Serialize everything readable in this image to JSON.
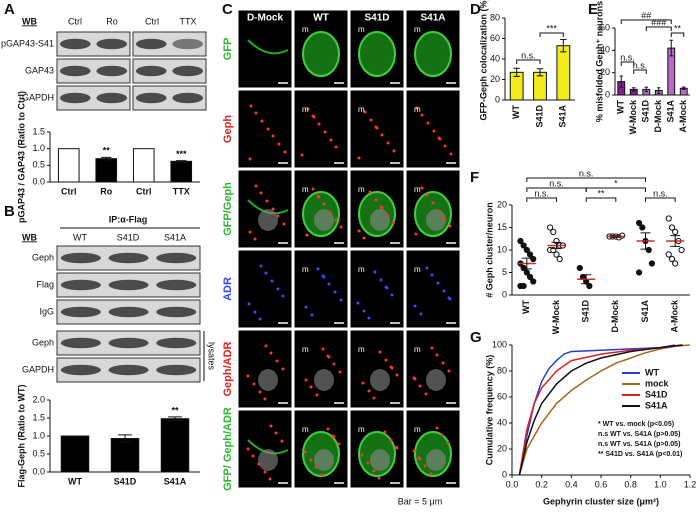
{
  "panel_labels": [
    "A",
    "B",
    "C",
    "D",
    "E",
    "F",
    "G"
  ],
  "blot_A": {
    "wb": "WB",
    "lanes": [
      "Ctrl",
      "Ro",
      "Ctrl",
      "TTX"
    ],
    "rows": [
      "pGAP43-S41",
      "GAP43",
      "GAPDH"
    ]
  },
  "blot_B": {
    "ip": "IP:α-Flag",
    "wb": "WB",
    "lanes": [
      "WT",
      "S41D",
      "S41A"
    ],
    "rows": [
      "Geph",
      "Flag",
      "IgG",
      "Geph",
      "GAPDH"
    ],
    "lysates": "lysates"
  },
  "micrographs": {
    "columns": [
      "D-Mock",
      "WT",
      "S41D",
      "S41A"
    ],
    "rows": [
      "GFP",
      "Geph",
      "GFP/Geph",
      "ADR",
      "Geph/ADR",
      "GFP/ Geph/ADR"
    ],
    "marker": "m",
    "scale_bar": "Bar = 5 μm"
  },
  "chart_data": [
    {
      "type": "bar",
      "y_label": "pGAP43 / GAP43 (Ratio to Ctrl)",
      "categories": [
        "Ctrl",
        "Ro",
        "Ctrl",
        "TTX"
      ],
      "values": [
        1,
        0.7,
        1,
        0.62
      ],
      "errors": [
        0,
        0.04,
        0,
        0.02
      ],
      "colors": [
        "#ffffff",
        "#000000",
        "#ffffff",
        "#000000"
      ],
      "annotations": [
        null,
        "**",
        null,
        "***"
      ],
      "ylim": [
        0,
        1.5
      ],
      "yticks": [
        {
          "value": 0,
          "label": "0.0"
        },
        0.5,
        {
          "value": 1,
          "label": "1.0"
        },
        1.5
      ]
    },
    {
      "type": "bar",
      "y_label": "Flag-Geph (Ratio to WT)",
      "categories": [
        "WT",
        "S41D",
        "S41A"
      ],
      "values": [
        1,
        0.93,
        1.48
      ],
      "errors": [
        0,
        0.1,
        0.05
      ],
      "colors": [
        "#000000",
        "#000000",
        "#000000"
      ],
      "annotations": [
        null,
        null,
        "**"
      ],
      "ylim": [
        0,
        2
      ],
      "yticks": [
        {
          "value": 0,
          "label": "0.0"
        },
        0.5,
        {
          "value": 1,
          "label": "1.0"
        },
        1.5,
        {
          "value": 2,
          "label": "2.0"
        }
      ]
    },
    {
      "type": "bar",
      "y_label": "GFP-Geph colocalization (%)",
      "categories": [
        "WT",
        "S41D",
        "S41A"
      ],
      "values": [
        27,
        27,
        53
      ],
      "errors": [
        4,
        3.5,
        6
      ],
      "colors": [
        "#f2ec1c",
        "#f2ec1c",
        "#f2ec1c"
      ],
      "brackets": [
        "n.s.",
        "***"
      ],
      "ylim": [
        0,
        80
      ],
      "yticks": [
        0,
        20,
        40,
        60,
        80
      ]
    },
    {
      "type": "bar",
      "y_label": "% misfolded Geph⁺ neurons",
      "categories": [
        "WT",
        "W-Mock",
        "S41D",
        "D-Mock",
        "S41A",
        "A-Mock"
      ],
      "values": [
        12,
        5,
        5,
        4,
        42,
        6
      ],
      "errors": [
        5,
        1.5,
        2,
        2.5,
        7,
        1
      ],
      "colors": [
        "#8b1a9b",
        "#8b1a9b",
        "#b46cc4",
        "#b46cc4",
        "#b46cc4",
        "#b46cc4"
      ],
      "brackets": [
        "##",
        "###",
        "**",
        "n.s.",
        "n.s."
      ],
      "ylim": [
        0,
        60
      ],
      "yticks": [
        0,
        20,
        40,
        60
      ]
    },
    {
      "type": "dot",
      "y_label": "# Geph cluster/neuron",
      "categories": [
        "WT",
        "W-Mock",
        "S41D",
        "D-Mock",
        "S41A",
        "A-Mock"
      ],
      "values": [
        7,
        11,
        3.5,
        13,
        12,
        12
      ],
      "errors": [
        1.2,
        0.7,
        1,
        0.2,
        1.8,
        1.2
      ],
      "points": [
        [
          12,
          11,
          10,
          9,
          8,
          7,
          6,
          5,
          4,
          3,
          2,
          2
        ],
        [
          15,
          14,
          12,
          11,
          11,
          10,
          10,
          9,
          8
        ],
        [
          6,
          4,
          3,
          2
        ],
        [
          13,
          13,
          13,
          12.8,
          13.2
        ],
        [
          16,
          15,
          12,
          10,
          7,
          5
        ],
        [
          17,
          15,
          14,
          12,
          10,
          9,
          8,
          7
        ]
      ],
      "point_filled": [
        true,
        false,
        true,
        false,
        true,
        false
      ],
      "color": "#d42a2a",
      "brackets": [
        "n.s.",
        "n.s.",
        "*",
        "n.s.",
        "**",
        "n.s."
      ],
      "ylim": [
        0,
        20
      ],
      "yticks": [
        0,
        5,
        10,
        15,
        20
      ]
    },
    {
      "type": "line",
      "x_label": "Gephyrin cluster size (μm²)",
      "y_label": "Cumulative frequency (%)",
      "legend": "right",
      "series": [
        {
          "name": "WT",
          "color": "#1f3fd6",
          "x": [
            0.05,
            0.1,
            0.15,
            0.2,
            0.25,
            0.3,
            0.35,
            0.4,
            0.6,
            0.8,
            1.0,
            1.1
          ],
          "values": [
            0,
            30,
            55,
            72,
            82,
            88,
            93,
            95,
            96,
            97,
            98,
            100
          ]
        },
        {
          "name": "mock",
          "color": "#a5661e",
          "x": [
            0.05,
            0.1,
            0.2,
            0.3,
            0.4,
            0.5,
            0.6,
            0.7,
            0.8,
            0.9,
            1.0,
            1.1,
            1.2
          ],
          "values": [
            0,
            20,
            40,
            55,
            65,
            73,
            80,
            86,
            90,
            94,
            97,
            99,
            100
          ]
        },
        {
          "name": "S41D",
          "color": "#e0201e",
          "x": [
            0.05,
            0.1,
            0.15,
            0.2,
            0.3,
            0.4,
            0.6,
            0.8,
            1.0,
            1.15
          ],
          "values": [
            0,
            35,
            55,
            67,
            80,
            88,
            93,
            96,
            98,
            100
          ]
        },
        {
          "name": "S41A",
          "color": "#111111",
          "x": [
            0.05,
            0.1,
            0.15,
            0.2,
            0.3,
            0.4,
            0.5,
            0.6,
            0.8,
            1.0,
            1.15
          ],
          "values": [
            0,
            25,
            42,
            55,
            70,
            80,
            86,
            90,
            95,
            98,
            100
          ]
        }
      ],
      "stats": [
        "* WT vs. mock (p<0.05)",
        "n.s WT vs. S41A (p>0.05)",
        "n.s WT vs. S41A (p>0.05)",
        "** S41D vs. S41A (p<0.01)"
      ],
      "xlim": [
        0,
        1.2
      ],
      "xticks": [
        {
          "value": 0,
          "label": "0.0"
        },
        0.2,
        0.4,
        0.6,
        0.8,
        {
          "value": 1,
          "label": "1.0"
        },
        1.2
      ],
      "ylim": [
        0,
        100
      ],
      "yticks": [
        0,
        20,
        40,
        60,
        80,
        100
      ]
    }
  ]
}
